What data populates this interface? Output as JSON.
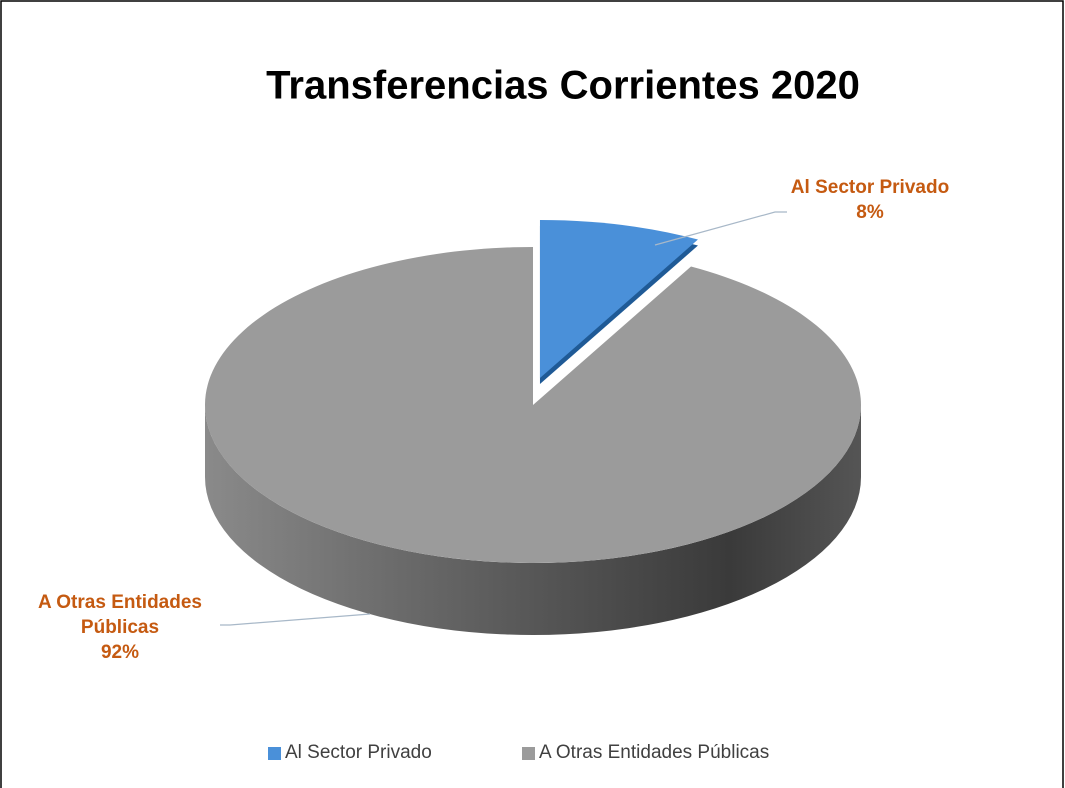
{
  "chart_data": {
    "type": "pie",
    "title": "Transferencias Corrientes 2020",
    "categories": [
      "Al Sector Privado",
      "A Otras Entidades Públicas"
    ],
    "values": [
      8,
      92
    ],
    "value_labels": [
      "8%",
      "92%"
    ],
    "colors": [
      "#4a90d9",
      "#9b9b9b"
    ],
    "legend": "bottom"
  }
}
